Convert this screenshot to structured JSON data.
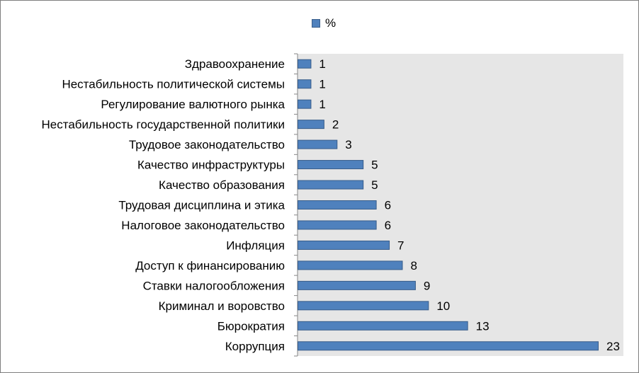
{
  "chart_data": {
    "type": "bar",
    "orientation": "horizontal",
    "title": "",
    "xlabel": "",
    "ylabel": "",
    "legend": {
      "position": "top",
      "entries": [
        "%"
      ]
    },
    "grid": false,
    "xlim": [
      0,
      25
    ],
    "categories": [
      "Здравоохранение",
      "Нестабильность политической системы",
      "Регулирование валютного рынка",
      "Нестабильность государственной политики",
      "Трудовое законодательство",
      "Качество инфраструктуры",
      "Качество образования",
      "Трудовая дисциплина и этика",
      "Налоговое законодательство",
      "Инфляция",
      "Доступ к финансированию",
      "Ставки налогообложения",
      "Криминал и воровство",
      "Бюрократия",
      "Коррупция"
    ],
    "series": [
      {
        "name": "%",
        "values": [
          1,
          1,
          1,
          2,
          3,
          5,
          5,
          6,
          6,
          7,
          8,
          9,
          10,
          13,
          23
        ],
        "color": "#4f81bd"
      }
    ],
    "data_labels": true,
    "plot_background": "#e6e6e6"
  }
}
